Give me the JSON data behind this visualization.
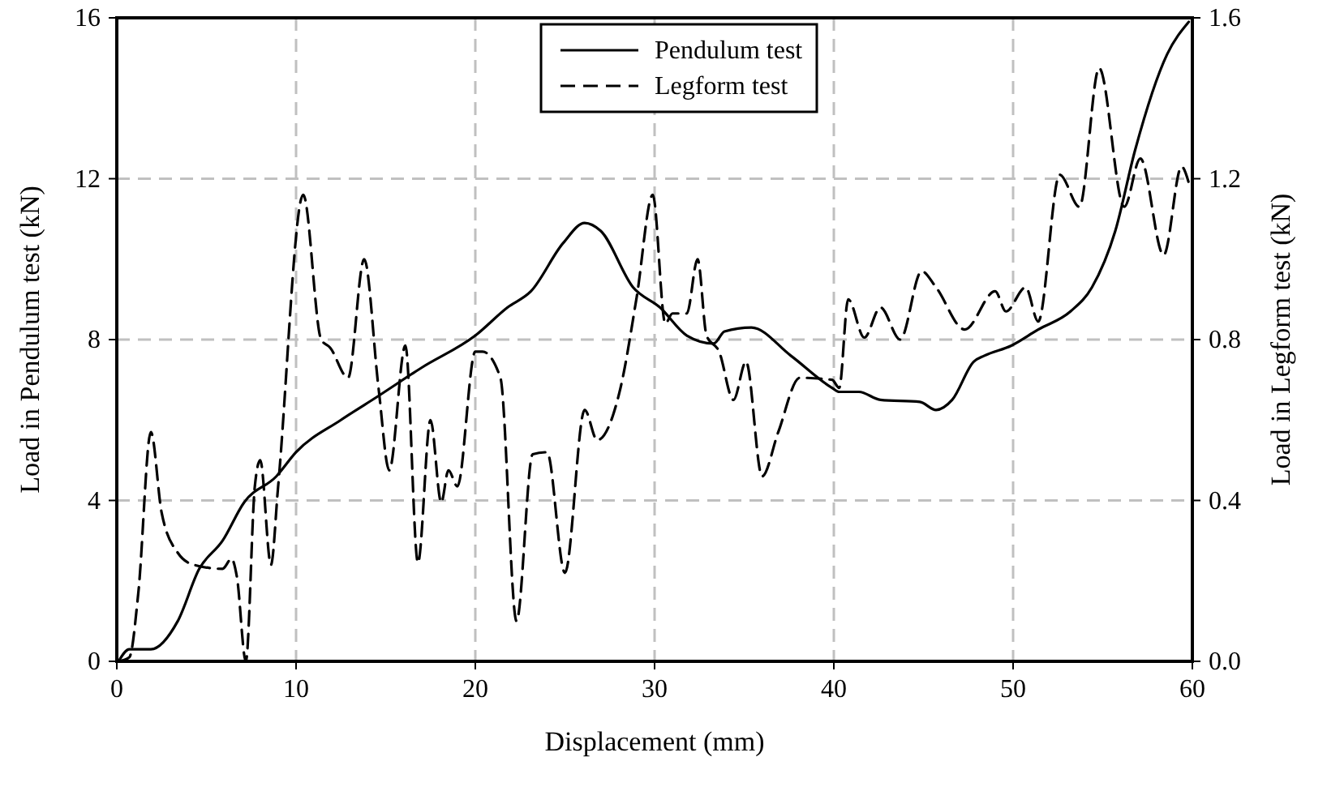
{
  "chart_data": {
    "type": "line",
    "xlabel": "Displacement (mm)",
    "ylabel": "Load in Pendulum test (kN)",
    "y2label": "Load in Legform test (kN)",
    "xlim": [
      0,
      60
    ],
    "xticks": [
      0,
      10,
      20,
      30,
      40,
      50,
      60
    ],
    "ylim": [
      0,
      16
    ],
    "yticks": [
      0,
      4,
      8,
      12,
      16
    ],
    "y2lim": [
      0,
      1.6
    ],
    "y2ticks": [
      {
        "value": 0,
        "label": "0.0"
      },
      0.4,
      0.8,
      1.2,
      1.6
    ],
    "grid": true,
    "legend": "top",
    "marker": "none",
    "series": [
      {
        "name": "Pendulum test",
        "color": "#000000",
        "line_style": "solid",
        "x": [
          0.1,
          0.7,
          1.9,
          3.4,
          4.6,
          5.9,
          7.1,
          8.9,
          10.0,
          12.5,
          14.6,
          17.0,
          20.0,
          21.8,
          23.1,
          24.9,
          26.1,
          27.0,
          28.8,
          30.3,
          31.8,
          33.3,
          33.9,
          35.4,
          37.6,
          39.9,
          40.3,
          41.4,
          42.6,
          44.8,
          45.7,
          46.6,
          47.8,
          48.4,
          49.9,
          51.4,
          53.2,
          54.4,
          55.7,
          56.8,
          58.6,
          59.8
        ],
        "values": [
          0,
          0.3,
          0.3,
          1.0,
          2.3,
          3.0,
          3.95,
          4.6,
          5.2,
          6.0,
          6.6,
          7.3,
          8.1,
          8.8,
          9.2,
          10.4,
          10.9,
          10.7,
          9.3,
          8.8,
          8.1,
          7.9,
          8.2,
          8.3,
          7.6,
          6.8,
          6.7,
          6.7,
          6.5,
          6.45,
          6.25,
          6.5,
          7.45,
          7.6,
          7.85,
          8.25,
          8.7,
          9.3,
          10.7,
          12.7,
          15.1,
          15.9
        ]
      },
      {
        "name": "Legform test",
        "color": "#000000",
        "line_style": "dashed",
        "axis": "y2",
        "x": [
          0.1,
          0.7,
          1.2,
          1.9,
          2.5,
          3.4,
          4.3,
          5.9,
          6.4,
          6.7,
          7.2,
          7.7,
          8.0,
          8.6,
          9.0,
          10.4,
          11.4,
          11.9,
          12.9,
          13.8,
          14.6,
          15.2,
          16.1,
          16.8,
          17.5,
          18.1,
          18.5,
          19.0,
          20.0,
          20.4,
          21.4,
          22.3,
          23.2,
          24.0,
          25.0,
          26.1,
          26.8,
          28.1,
          29.0,
          29.9,
          30.6,
          31.0,
          31.8,
          32.4,
          32.9,
          33.6,
          34.4,
          35.1,
          36.0,
          36.9,
          38.1,
          39.9,
          40.3,
          40.8,
          41.7,
          42.6,
          43.7,
          44.9,
          45.7,
          47.3,
          49.0,
          49.6,
          50.7,
          51.4,
          52.6,
          53.7,
          54.8,
          56.2,
          57.1,
          58.4,
          59.4,
          59.8
        ],
        "values": [
          0,
          0.01,
          0.17,
          0.57,
          0.37,
          0.27,
          0.24,
          0.23,
          0.255,
          0.21,
          0,
          0.435,
          0.5,
          0.24,
          0.435,
          1.16,
          0.8,
          0.78,
          0.705,
          1.0,
          0.68,
          0.475,
          0.785,
          0.245,
          0.6,
          0.395,
          0.475,
          0.435,
          0.77,
          0.77,
          0.705,
          0.1,
          0.515,
          0.52,
          0.22,
          0.625,
          0.55,
          0.68,
          0.905,
          1.16,
          0.84,
          0.865,
          0.865,
          1.0,
          0.81,
          0.77,
          0.65,
          0.745,
          0.46,
          0.57,
          0.705,
          0.7,
          0.68,
          0.9,
          0.805,
          0.88,
          0.8,
          0.97,
          0.93,
          0.825,
          0.92,
          0.87,
          0.93,
          0.845,
          1.21,
          1.13,
          1.475,
          1.13,
          1.25,
          1.01,
          1.23,
          1.19
        ]
      }
    ]
  }
}
